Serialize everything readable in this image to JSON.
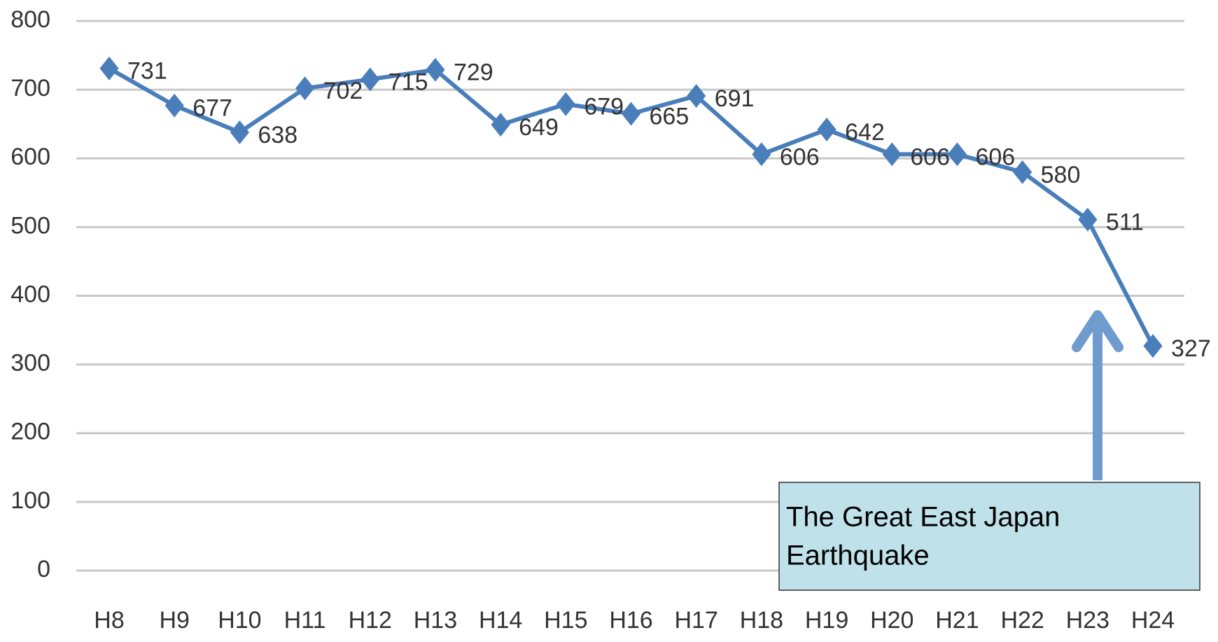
{
  "chart_data": {
    "type": "line",
    "categories": [
      "H8",
      "H9",
      "H10",
      "H11",
      "H12",
      "H13",
      "H14",
      "H15",
      "H16",
      "H17",
      "H18",
      "H19",
      "H20",
      "H21",
      "H22",
      "H23",
      "H24"
    ],
    "values": [
      731,
      677,
      638,
      702,
      715,
      729,
      649,
      679,
      665,
      691,
      606,
      642,
      606,
      606,
      580,
      511,
      327
    ],
    "color": "#4a7ebb",
    "ylim": [
      0,
      800
    ],
    "yticks": [
      0,
      100,
      200,
      300,
      400,
      500,
      600,
      700,
      800
    ],
    "grid": true,
    "annotation": [
      "The Great East Japan",
      "Earthquake"
    ]
  }
}
